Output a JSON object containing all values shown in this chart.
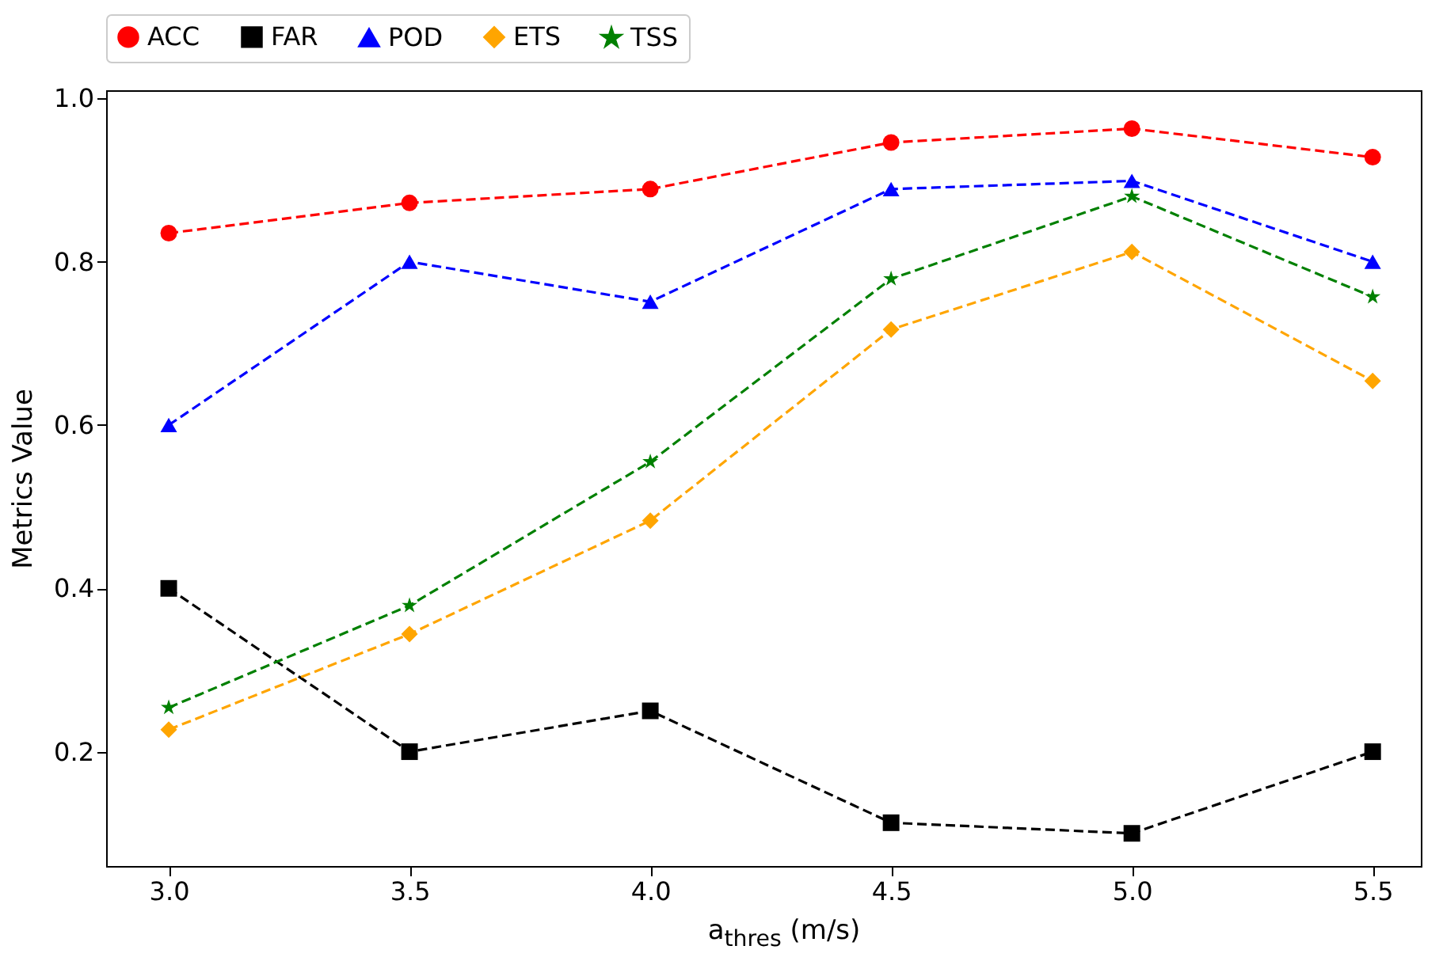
{
  "chart_data": {
    "type": "line",
    "xlabel": "a$_{thres}$ (m/s)",
    "ylabel": "Metrics Value",
    "x": [
      3.0,
      3.5,
      4.0,
      4.5,
      5.0,
      5.5
    ],
    "xlim": [
      2.87,
      5.6
    ],
    "xticks": [
      {
        "value": 3.0,
        "label": "3.0"
      },
      {
        "value": 3.5,
        "label": "3.5"
      },
      {
        "value": 4.0,
        "label": "4.0"
      },
      {
        "value": 4.5,
        "label": "4.5"
      },
      {
        "value": 5.0,
        "label": "5.0"
      },
      {
        "value": 5.5,
        "label": "5.5"
      }
    ],
    "ylim": [
      0.06,
      1.01
    ],
    "yticks": [
      0.2,
      0.4,
      0.6,
      0.8,
      {
        "value": 1.0,
        "label": "1.0"
      }
    ],
    "grid": false,
    "legend": "top",
    "line_style": "dashed",
    "series": [
      {
        "name": "ACC",
        "color": "#ff0000",
        "marker": "circle",
        "values": [
          0.835,
          0.872,
          0.889,
          0.946,
          0.963,
          0.928
        ]
      },
      {
        "name": "FAR",
        "color": "#000000",
        "marker": "square",
        "values": [
          0.4,
          0.2,
          0.25,
          0.113,
          0.1,
          0.2
        ]
      },
      {
        "name": "POD",
        "color": "#0000ff",
        "marker": "triangle",
        "values": [
          0.6,
          0.8,
          0.751,
          0.889,
          0.899,
          0.8
        ]
      },
      {
        "name": "ETS",
        "color": "#ffa500",
        "marker": "diamond",
        "values": [
          0.227,
          0.344,
          0.483,
          0.717,
          0.812,
          0.654
        ]
      },
      {
        "name": "TSS",
        "color": "#008000",
        "marker": "star",
        "values": [
          0.254,
          0.379,
          0.555,
          0.779,
          0.88,
          0.757
        ]
      }
    ]
  }
}
